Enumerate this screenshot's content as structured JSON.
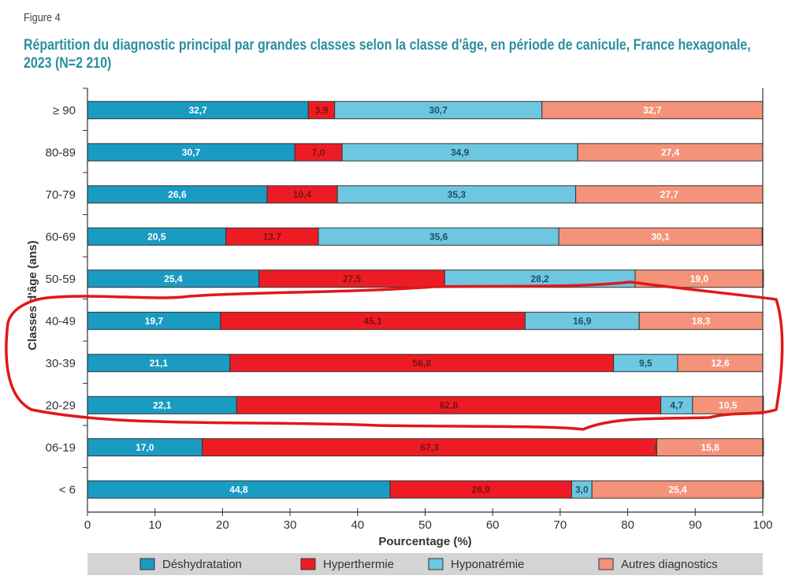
{
  "figure_label": "Figure 4",
  "title": "Répartition du diagnostic principal par grandes classes selon la classe d'âge, en période de canicule, France hexagonale, 2023 (N=2 210)",
  "annotation": {
    "description": "red hand-drawn circle around 40-49, 30-39, 20-29 rows",
    "color": "#e01818"
  },
  "chart_data": {
    "type": "bar",
    "orientation": "horizontal",
    "stacked": true,
    "title": "Répartition du diagnostic principal par grandes classes selon la classe d'âge, en période de canicule, France hexagonale, 2023 (N=2 210)",
    "xlabel": "Pourcentage (%)",
    "ylabel": "Classes d'âge (ans)",
    "xlim": [
      0,
      100
    ],
    "xticks": [
      "0",
      "10",
      "20",
      "30",
      "40",
      "50",
      "60",
      "70",
      "80",
      "90",
      "100"
    ],
    "grid": false,
    "legend_position": "bottom",
    "categories": [
      "≥ 90",
      "80-89",
      "70-79",
      "60-69",
      "50-59",
      "40-49",
      "30-39",
      "20-29",
      "06-19",
      "< 6"
    ],
    "series": [
      {
        "name": "Déshydratation",
        "color": "#1a9bc2",
        "label_color": "#ffffff",
        "values": [
          32.7,
          30.7,
          26.6,
          20.5,
          25.4,
          19.7,
          21.1,
          22.1,
          17.0,
          44.8
        ],
        "labels": [
          "32,7",
          "30,7",
          "26,6",
          "20,5",
          "25,4",
          "19,7",
          "21,1",
          "22,1",
          "17,0",
          "44,8"
        ]
      },
      {
        "name": "Hyperthermie",
        "color": "#ed1c24",
        "label_color": "#7a1010",
        "values": [
          3.9,
          7.0,
          10.4,
          13.7,
          27.5,
          45.1,
          56.8,
          62.8,
          67.3,
          26.9
        ],
        "labels": [
          "3,9",
          "7,0",
          "10,4",
          "13,7",
          "27,5",
          "45,1",
          "56,8",
          "62,8",
          "67,3",
          "26,9"
        ]
      },
      {
        "name": "Hyponatrémie",
        "color": "#6dc7e0",
        "label_color": "#1f4f66",
        "values": [
          30.7,
          34.9,
          35.3,
          35.6,
          28.2,
          16.9,
          9.5,
          4.7,
          0.0,
          3.0
        ],
        "labels": [
          "30,7",
          "34,9",
          "35,3",
          "35,6",
          "28,2",
          "16,9",
          "9,5",
          "4,7",
          "0,0",
          "3,0"
        ]
      },
      {
        "name": "Autres diagnostics",
        "color": "#f4937a",
        "label_color": "#ffffff",
        "values": [
          32.7,
          27.4,
          27.7,
          30.1,
          19.0,
          18.3,
          12.6,
          10.5,
          15.8,
          25.4
        ],
        "labels": [
          "32,7",
          "27,4",
          "27,7",
          "30,1",
          "19,0",
          "18,3",
          "12,6",
          "10,5",
          "15,8",
          "25,4"
        ]
      }
    ]
  }
}
